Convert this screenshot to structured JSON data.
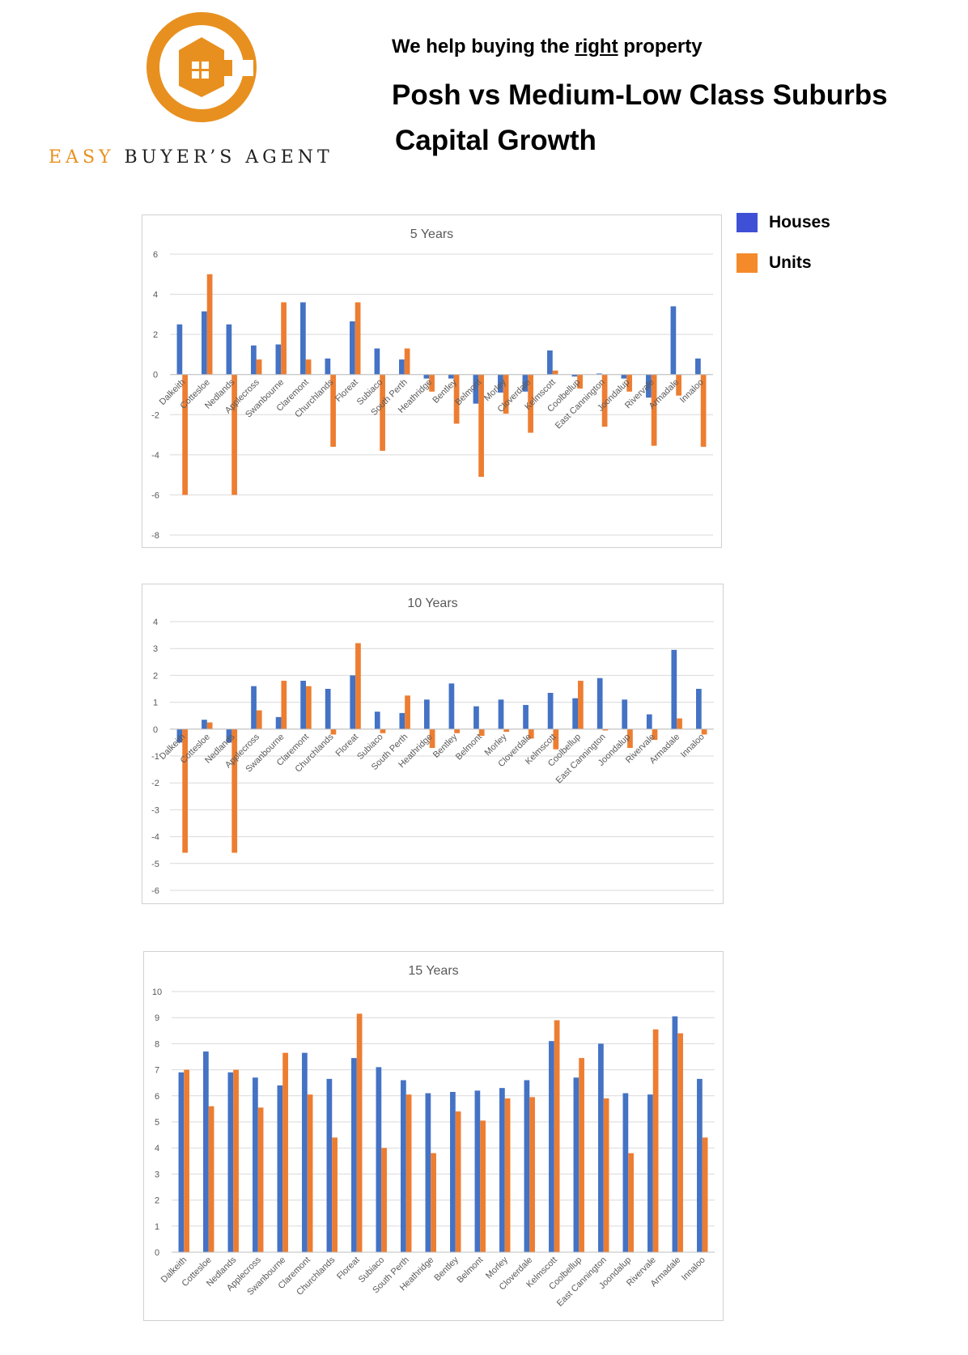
{
  "brand": {
    "name_first": "EASY",
    "name_rest": "BUYER’S AGENT",
    "logo_icon": "wrench-house-logo-icon",
    "logo_color": "#e8901f"
  },
  "header": {
    "tagline_pre": "We help buying the ",
    "tagline_emph": "right",
    "tagline_post": " property",
    "headline1": "Posh vs Medium-Low Class Suburbs",
    "headline2": "Capital Growth"
  },
  "legend": {
    "items": [
      {
        "label": "Houses",
        "color": "#4472c4"
      },
      {
        "label": "Units",
        "color": "#ed7d31"
      }
    ]
  },
  "chart_data": [
    {
      "type": "bar",
      "title": "5 Years",
      "categories": [
        "Dalkeith",
        "Cottesloe",
        "Nedlands",
        "Applecross",
        "Swanbourne",
        "Claremont",
        "Churchlands",
        "Floreat",
        "Subiaco",
        "South Perth",
        "Heathridge",
        "Bentley",
        "Belmont",
        "Morley",
        "Cloverdale",
        "Kelmscott",
        "Coolbellup",
        "East Cannington",
        "Joondalup",
        "Rivervale",
        "Armadale",
        "Innaloo"
      ],
      "series": [
        {
          "name": "Houses",
          "color": "#4472c4",
          "values": [
            2.5,
            3.15,
            2.5,
            1.45,
            1.5,
            3.6,
            0.8,
            2.65,
            1.3,
            0.75,
            -0.2,
            -0.2,
            -1.45,
            -0.9,
            -0.85,
            1.2,
            -0.1,
            0.05,
            -0.2,
            -1.15,
            3.4,
            0.8
          ]
        },
        {
          "name": "Units",
          "color": "#ed7d31",
          "values": [
            -6,
            5,
            -6,
            0.75,
            3.6,
            0.75,
            -3.6,
            3.6,
            -3.8,
            1.3,
            -0.85,
            -2.45,
            -5.1,
            -1.95,
            -2.9,
            0.2,
            -0.7,
            -2.6,
            -0.85,
            -3.55,
            -1.05,
            -3.6
          ]
        }
      ],
      "ylim": [
        -8,
        6
      ],
      "yticks": [
        "6",
        "4",
        "2",
        "0",
        "-2",
        "-4",
        "-6",
        "-8"
      ],
      "grid": true,
      "legend": "right"
    },
    {
      "type": "bar",
      "title": "10 Years",
      "categories": [
        "Dalkeith",
        "Cottesloe",
        "Nedlands",
        "Applecross",
        "Swanbourne",
        "Claremont",
        "Churchlands",
        "Floreat",
        "Subiaco",
        "South Perth",
        "Heathridge",
        "Bentley",
        "Belmont",
        "Morley",
        "Cloverdale",
        "Kelmscott",
        "Coolbellup",
        "East Cannington",
        "Joondalup",
        "Rivervale",
        "Armadale",
        "Innaloo"
      ],
      "series": [
        {
          "name": "Houses",
          "color": "#4472c4",
          "values": [
            -0.5,
            0.35,
            -0.5,
            1.6,
            0.45,
            1.8,
            1.5,
            2,
            0.65,
            0.6,
            1.1,
            1.7,
            0.85,
            1.1,
            0.9,
            1.35,
            1.15,
            1.9,
            1.1,
            0.55,
            2.95,
            1.5
          ]
        },
        {
          "name": "Units",
          "color": "#ed7d31",
          "values": [
            -4.6,
            0.25,
            -4.6,
            0.7,
            1.8,
            1.6,
            -0.2,
            3.2,
            -0.15,
            1.25,
            -0.7,
            -0.15,
            -0.25,
            -0.1,
            -0.35,
            -0.75,
            1.8,
            -0.05,
            -0.7,
            -0.4,
            0.4,
            -0.2
          ]
        }
      ],
      "ylim": [
        -6,
        4
      ],
      "yticks": [
        "4",
        "3",
        "2",
        "1",
        "0",
        "-1",
        "-2",
        "-3",
        "-4",
        "-5",
        "-6"
      ],
      "grid": true,
      "legend": "right"
    },
    {
      "type": "bar",
      "title": "15 Years",
      "categories": [
        "Dalkeith",
        "Cottesloe",
        "Nedlands",
        "Applecross",
        "Swanbourne",
        "Claremont",
        "Churchlands",
        "Floreat",
        "Subiaco",
        "South Perth",
        "Heathridge",
        "Bentley",
        "Belmont",
        "Morley",
        "Cloverdale",
        "Kelmscott",
        "Coolbellup",
        "East Cannington",
        "Joondalup",
        "Rivervale",
        "Armadale",
        "Innaloo"
      ],
      "series": [
        {
          "name": "Houses",
          "color": "#4472c4",
          "values": [
            6.9,
            7.7,
            6.9,
            6.7,
            6.4,
            7.65,
            6.65,
            7.45,
            7.1,
            6.6,
            6.1,
            6.15,
            6.2,
            6.3,
            6.6,
            8.1,
            6.7,
            8,
            6.1,
            6.05,
            9.05,
            6.65
          ]
        },
        {
          "name": "Units",
          "color": "#ed7d31",
          "values": [
            7,
            5.6,
            7,
            5.55,
            7.65,
            6.05,
            4.4,
            9.15,
            4,
            6.05,
            3.8,
            5.4,
            5.05,
            5.9,
            5.95,
            8.9,
            7.45,
            5.9,
            3.8,
            8.55,
            8.4,
            4.4
          ]
        }
      ],
      "ylim": [
        0,
        10
      ],
      "yticks": [
        "10",
        "9",
        "8",
        "7",
        "6",
        "5",
        "4",
        "3",
        "2",
        "1",
        "0"
      ],
      "grid": true,
      "legend": "right"
    }
  ]
}
